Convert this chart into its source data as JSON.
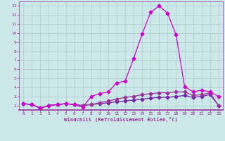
{
  "xlabel": "Windchill (Refroidissement éolien,°C)",
  "x_values": [
    0,
    1,
    2,
    3,
    4,
    5,
    6,
    7,
    8,
    9,
    10,
    11,
    12,
    13,
    14,
    15,
    16,
    17,
    18,
    19,
    20,
    21,
    22,
    23
  ],
  "line1": [
    2.2,
    2.1,
    1.7,
    2.0,
    2.1,
    2.2,
    2.1,
    1.8,
    3.0,
    3.3,
    3.5,
    4.5,
    4.7,
    7.2,
    9.9,
    12.3,
    13.0,
    12.2,
    9.8,
    4.1,
    3.5,
    3.7,
    3.5,
    3.0
  ],
  "line2": [
    2.2,
    2.1,
    1.7,
    2.0,
    2.1,
    2.2,
    2.1,
    2.0,
    2.1,
    2.3,
    2.5,
    2.7,
    2.9,
    3.0,
    3.2,
    3.3,
    3.4,
    3.4,
    3.5,
    3.5,
    3.1,
    3.2,
    3.4,
    2.0
  ],
  "line3": [
    2.2,
    2.1,
    1.7,
    2.0,
    2.1,
    2.2,
    2.1,
    2.0,
    2.1,
    2.2,
    2.3,
    2.4,
    2.5,
    2.6,
    2.7,
    2.8,
    2.9,
    2.9,
    3.0,
    3.1,
    2.9,
    3.0,
    3.2,
    2.0
  ],
  "bg_color": "#cce8e8",
  "grid_color": "#aacccc",
  "line_color1": "#cc00cc",
  "line_color2": "#993399",
  "line_color3": "#7722aa",
  "axis_color": "#993399",
  "ylim": [
    1.5,
    13.5
  ],
  "yticks": [
    2,
    3,
    4,
    5,
    6,
    7,
    8,
    9,
    10,
    11,
    12,
    13
  ],
  "xlim": [
    -0.5,
    23.5
  ],
  "markersize": 2.5,
  "linewidth": 0.9
}
